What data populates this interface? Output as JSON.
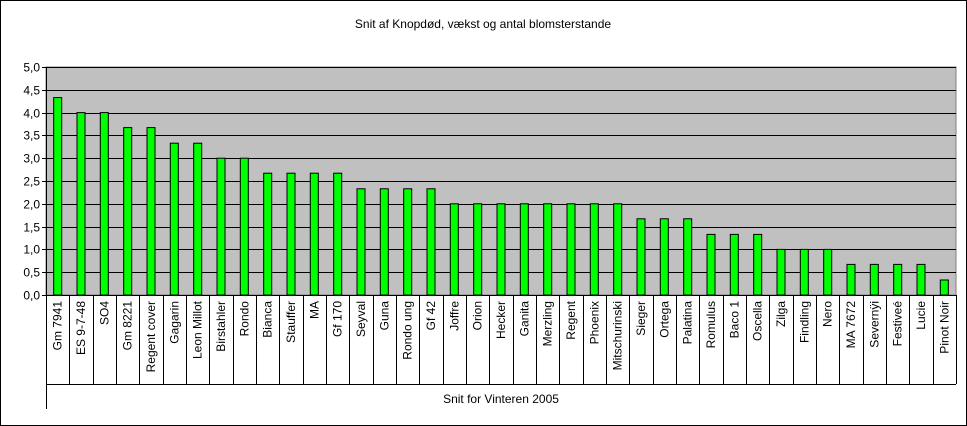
{
  "chart_data": {
    "type": "bar",
    "title": "Snit af Knopdød, vækst og antal blomsterstande",
    "xlabel": "",
    "ylabel": "",
    "group_label": "Snit for Vinteren 2005",
    "ylim": [
      0,
      5
    ],
    "yticks": [
      "0,0",
      "0,5",
      "1,0",
      "1,5",
      "2,0",
      "2,5",
      "3,0",
      "3,5",
      "4,0",
      "4,5",
      "5,0"
    ],
    "grid": true,
    "legend": "none",
    "colors": {
      "bar": "#00ff00",
      "bar_edge": "#000000",
      "plot_bg": "#c0c0c0",
      "grid": "#000000"
    },
    "categories": [
      "Gm 7941",
      "ES 9-7-48",
      "SO4",
      "Gm 8221",
      "Regent cover",
      "Gagarin",
      "Leon Millot",
      "Birstahler",
      "Rondo",
      "Bianca",
      "Stauffer",
      "MA",
      "Gf 170",
      "Seyval",
      "Guna",
      "Rondo ung",
      "Gf 42",
      "Joffre",
      "Orion",
      "Hecker",
      "Ganita",
      "Merzling",
      "Regent",
      "Phoenix",
      "Mitschurinski",
      "Sieger",
      "Ortega",
      "Palatina",
      "Romulus",
      "Baco 1",
      "Oscella",
      "Zilga",
      "Findling",
      "Nero",
      "MA 7672",
      "Severnÿi",
      "Festiveé",
      "Lucie",
      "Pinot Noir"
    ],
    "values": [
      4.33,
      4.0,
      4.0,
      3.67,
      3.67,
      3.33,
      3.33,
      3.0,
      3.0,
      2.67,
      2.67,
      2.67,
      2.67,
      2.33,
      2.33,
      2.33,
      2.33,
      2.0,
      2.0,
      2.0,
      2.0,
      2.0,
      2.0,
      2.0,
      2.0,
      1.67,
      1.67,
      1.67,
      1.33,
      1.33,
      1.33,
      1.0,
      1.0,
      1.0,
      0.67,
      0.67,
      0.67,
      0.67,
      0.33
    ]
  }
}
